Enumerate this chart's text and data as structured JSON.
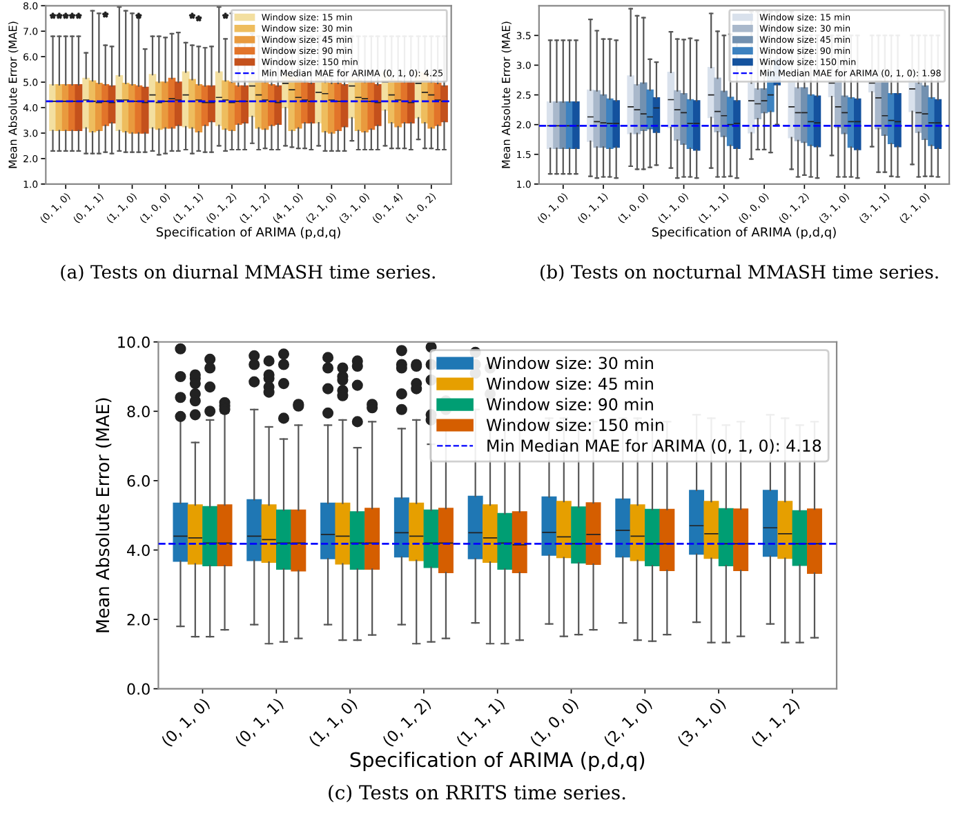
{
  "chart_data": [
    {
      "type": "box",
      "xlabel": "Specification of ARIMA (p,d,q)",
      "ylabel": "Mean Absolute Error (MAE)",
      "annotations": [
        "(a) Tests on diurnal MMASH time series."
      ],
      "marker": "star",
      "legend": "top right",
      "categories": [
        "(0, 1, 0)",
        "(0, 1, 1)",
        "(1, 1, 0)",
        "(1, 0, 0)",
        "(1, 1, 1)",
        "(0, 1, 2)",
        "(1, 1, 2)",
        "(4, 1, 0)",
        "(2, 1, 0)",
        "(3, 1, 0)",
        "(0, 1, 4)",
        "(1, 0, 2)"
      ],
      "ylim": [
        1.0,
        8.0
      ],
      "yticks": [
        {
          "value": 1,
          "label": "1.0"
        },
        {
          "value": 2,
          "label": "2.0"
        },
        {
          "value": 3,
          "label": "3.0"
        },
        {
          "value": 4,
          "label": "4.0"
        },
        {
          "value": 5,
          "label": "5.0"
        },
        {
          "value": 6,
          "label": "6.0"
        },
        {
          "value": 7,
          "label": "7.0"
        },
        {
          "value": 8,
          "label": "8.0"
        }
      ],
      "ref_lines": [
        {
          "axis": "y",
          "value": 4.25,
          "label": "Min Median MAE for ARIMA (0, 1, 0): 4.25",
          "color": "#0000ff",
          "line_style": "dashed"
        }
      ],
      "series": [
        {
          "name": "Window size: 15 min",
          "color": "#f3dfa0",
          "boxes": [
            {
              "low": 2.3,
              "q1": 3.1,
              "median": 4.25,
              "q3": 4.9,
              "high": 6.8,
              "outliers": [
                7.6
              ]
            },
            {
              "low": 2.2,
              "q1": 3.2,
              "median": 4.3,
              "q3": 5.15,
              "high": 6.15
            },
            {
              "low": 2.3,
              "q1": 3.1,
              "median": 4.3,
              "q3": 5.25,
              "high": 7.95
            },
            {
              "low": 2.3,
              "q1": 3.2,
              "median": 4.5,
              "q3": 5.3,
              "high": 6.8
            },
            {
              "low": 2.35,
              "q1": 3.25,
              "median": 4.5,
              "q3": 5.4,
              "high": 6.55
            },
            {
              "low": 2.5,
              "q1": 3.3,
              "median": 4.4,
              "q3": 5.4,
              "high": 7.95
            },
            {
              "low": 2.6,
              "q1": 3.65,
              "median": 4.85,
              "q3": 5.3,
              "high": 6.9
            },
            {
              "low": 2.5,
              "q1": 4.0,
              "median": 4.95,
              "q3": 5.3,
              "high": 6.8
            },
            {
              "low": 2.5,
              "q1": 3.4,
              "median": 4.6,
              "q3": 5.2,
              "high": 6.8
            },
            {
              "low": 2.7,
              "q1": 3.6,
              "median": 4.85,
              "q3": 5.2,
              "high": 6.8
            },
            {
              "low": 2.5,
              "q1": 3.9,
              "median": 5.0,
              "q3": 5.4,
              "high": 6.8
            },
            {
              "low": 2.75,
              "q1": 3.6,
              "median": 4.95,
              "q3": 5.4,
              "high": 6.8
            }
          ]
        },
        {
          "name": "Window size: 30 min",
          "color": "#eebd5e",
          "boxes": [
            {
              "low": 2.3,
              "q1": 3.1,
              "median": 4.25,
              "q3": 4.9,
              "high": 6.8,
              "outliers": [
                7.6
              ]
            },
            {
              "low": 2.2,
              "q1": 3.05,
              "median": 4.25,
              "q3": 5.05,
              "high": 7.8
            },
            {
              "low": 2.25,
              "q1": 3.05,
              "median": 4.3,
              "q3": 4.95,
              "high": 7.8
            },
            {
              "low": 2.15,
              "q1": 3.15,
              "median": 4.2,
              "q3": 5.0,
              "high": 6.8
            },
            {
              "low": 2.2,
              "q1": 3.2,
              "median": 4.25,
              "q3": 5.1,
              "high": 6.45,
              "outliers": [
                7.6
              ]
            },
            {
              "low": 2.3,
              "q1": 3.15,
              "median": 4.3,
              "q3": 5.05,
              "high": 6.7,
              "outliers": [
                7.6
              ]
            },
            {
              "low": 2.35,
              "q1": 3.2,
              "median": 4.5,
              "q3": 5.1,
              "high": 6.8
            },
            {
              "low": 2.45,
              "q1": 3.1,
              "median": 4.7,
              "q3": 5.2,
              "high": 6.8
            },
            {
              "low": 2.3,
              "q1": 3.05,
              "median": 4.55,
              "q3": 5.0,
              "high": 6.8
            },
            {
              "low": 2.35,
              "q1": 3.1,
              "median": 4.4,
              "q3": 5.1,
              "high": 6.8
            },
            {
              "low": 2.4,
              "q1": 3.4,
              "median": 4.5,
              "q3": 5.1,
              "high": 6.8
            },
            {
              "low": 2.4,
              "q1": 3.4,
              "median": 4.6,
              "q3": 5.35,
              "high": 6.8
            }
          ]
        },
        {
          "name": "Window size: 45 min",
          "color": "#e99a3e",
          "boxes": [
            {
              "low": 2.3,
              "q1": 3.1,
              "median": 4.25,
              "q3": 4.9,
              "high": 6.8,
              "outliers": [
                7.6
              ]
            },
            {
              "low": 2.2,
              "q1": 3.1,
              "median": 4.2,
              "q3": 4.95,
              "high": 7.7
            },
            {
              "low": 2.25,
              "q1": 3.0,
              "median": 4.25,
              "q3": 4.9,
              "high": 7.7
            },
            {
              "low": 2.2,
              "q1": 3.2,
              "median": 4.25,
              "q3": 5.0,
              "high": 6.75
            },
            {
              "low": 2.3,
              "q1": 3.05,
              "median": 4.3,
              "q3": 4.9,
              "high": 6.4,
              "outliers": [
                7.5
              ]
            },
            {
              "low": 2.35,
              "q1": 3.1,
              "median": 4.2,
              "q3": 5.0,
              "high": 7.7
            },
            {
              "low": 2.4,
              "q1": 3.15,
              "median": 4.3,
              "q3": 5.0,
              "high": 6.7
            },
            {
              "low": 2.4,
              "q1": 3.2,
              "median": 4.4,
              "q3": 5.1,
              "high": 6.8
            },
            {
              "low": 2.3,
              "q1": 3.0,
              "median": 4.3,
              "q3": 4.95,
              "high": 6.8
            },
            {
              "low": 2.35,
              "q1": 3.05,
              "median": 4.35,
              "q3": 5.0,
              "high": 6.8
            },
            {
              "low": 2.4,
              "q1": 3.25,
              "median": 4.3,
              "q3": 5.05,
              "high": 6.8
            },
            {
              "low": 2.4,
              "q1": 3.2,
              "median": 4.5,
              "q3": 5.0,
              "high": 6.8
            }
          ]
        },
        {
          "name": "Window size: 90 min",
          "color": "#e2742a",
          "boxes": [
            {
              "low": 2.3,
              "q1": 3.1,
              "median": 4.25,
              "q3": 4.9,
              "high": 6.8,
              "outliers": [
                7.6
              ]
            },
            {
              "low": 2.25,
              "q1": 3.3,
              "median": 4.25,
              "q3": 4.9,
              "high": 6.45,
              "outliers": [
                7.65
              ]
            },
            {
              "low": 2.25,
              "q1": 3.0,
              "median": 4.25,
              "q3": 4.85,
              "high": 7.55,
              "outliers": [
                7.6
              ]
            },
            {
              "low": 2.3,
              "q1": 3.2,
              "median": 4.35,
              "q3": 5.15,
              "high": 6.9
            },
            {
              "low": 2.25,
              "q1": 3.3,
              "median": 4.2,
              "q3": 4.85,
              "high": 6.35
            },
            {
              "low": 2.35,
              "q1": 3.35,
              "median": 4.25,
              "q3": 4.85,
              "high": 6.5
            },
            {
              "low": 2.35,
              "q1": 3.3,
              "median": 4.25,
              "q3": 4.9,
              "high": 6.6
            },
            {
              "low": 2.4,
              "q1": 3.4,
              "median": 4.3,
              "q3": 5.0,
              "high": 6.8
            },
            {
              "low": 2.3,
              "q1": 3.1,
              "median": 4.25,
              "q3": 4.95,
              "high": 6.8
            },
            {
              "low": 2.35,
              "q1": 3.15,
              "median": 4.25,
              "q3": 5.0,
              "high": 6.8
            },
            {
              "low": 2.4,
              "q1": 3.4,
              "median": 4.25,
              "q3": 5.0,
              "high": 6.8
            },
            {
              "low": 2.35,
              "q1": 3.3,
              "median": 4.3,
              "q3": 4.95,
              "high": 6.8
            }
          ]
        },
        {
          "name": "Window size: 150 min",
          "color": "#c4511c",
          "boxes": [
            {
              "low": 2.3,
              "q1": 3.1,
              "median": 4.25,
              "q3": 4.9,
              "high": 6.8,
              "outliers": [
                7.6
              ]
            },
            {
              "low": 2.2,
              "q1": 3.4,
              "median": 4.2,
              "q3": 4.85,
              "high": 6.4
            },
            {
              "low": 2.25,
              "q1": 3.0,
              "median": 4.2,
              "q3": 4.8,
              "high": 6.3
            },
            {
              "low": 2.3,
              "q1": 3.3,
              "median": 4.3,
              "q3": 5.0,
              "high": 6.95
            },
            {
              "low": 2.25,
              "q1": 3.45,
              "median": 4.2,
              "q3": 4.85,
              "high": 6.4
            },
            {
              "low": 2.35,
              "q1": 3.4,
              "median": 4.25,
              "q3": 4.85,
              "high": 6.55
            },
            {
              "low": 2.35,
              "q1": 3.35,
              "median": 4.2,
              "q3": 4.85,
              "high": 6.6
            },
            {
              "low": 2.35,
              "q1": 3.4,
              "median": 4.25,
              "q3": 4.95,
              "high": 6.8
            },
            {
              "low": 2.3,
              "q1": 3.25,
              "median": 4.25,
              "q3": 4.9,
              "high": 6.8
            },
            {
              "low": 2.35,
              "q1": 3.3,
              "median": 4.2,
              "q3": 4.9,
              "high": 6.8
            },
            {
              "low": 2.35,
              "q1": 3.4,
              "median": 4.2,
              "q3": 5.0,
              "high": 6.8
            },
            {
              "low": 2.35,
              "q1": 3.45,
              "median": 4.25,
              "q3": 4.85,
              "high": 6.8
            }
          ]
        }
      ]
    },
    {
      "type": "box",
      "xlabel": "Specification of ARIMA (p,d,q)",
      "ylabel": "Mean Absolute Error (MAE)",
      "annotations": [
        "(b) Tests on nocturnal MMASH time series."
      ],
      "legend": "top right",
      "categories": [
        "(0, 1, 0)",
        "(0, 1, 1)",
        "(1, 0, 0)",
        "(1, 1, 0)",
        "(1, 1, 1)",
        "(0, 0, 0)",
        "(0, 1, 2)",
        "(3, 1, 0)",
        "(3, 1, 1)",
        "(2, 1, 0)"
      ],
      "ylim": [
        1.0,
        4.0
      ],
      "yticks": [
        {
          "value": 1,
          "label": "1.0"
        },
        1.5,
        {
          "value": 2,
          "label": "2.0"
        },
        2.5,
        {
          "value": 3,
          "label": "3.0"
        },
        3.5
      ],
      "ref_lines": [
        {
          "axis": "y",
          "value": 1.98,
          "label": "Min Median MAE for ARIMA (0, 1, 0): 1.98",
          "color": "#0000ff",
          "line_style": "dashed"
        }
      ],
      "series": [
        {
          "name": "Window size: 15 min",
          "color": "#d9e1ec",
          "boxes": [
            {
              "low": 1.17,
              "q1": 1.6,
              "median": 1.98,
              "q3": 2.38,
              "high": 3.42
            },
            {
              "low": 1.13,
              "q1": 1.72,
              "median": 2.13,
              "q3": 2.58,
              "high": 3.77
            },
            {
              "low": 1.3,
              "q1": 1.85,
              "median": 2.3,
              "q3": 2.82,
              "high": 3.95
            },
            {
              "low": 1.27,
              "q1": 1.95,
              "median": 2.42,
              "q3": 2.88,
              "high": 3.56
            },
            {
              "low": 1.27,
              "q1": 2.12,
              "median": 2.5,
              "q3": 2.96,
              "high": 3.87
            },
            {
              "low": 1.42,
              "q1": 1.86,
              "median": 2.4,
              "q3": 2.7,
              "high": 3.9
            },
            {
              "low": 1.25,
              "q1": 1.78,
              "median": 2.3,
              "q3": 2.9,
              "high": 3.9
            },
            {
              "low": 1.48,
              "q1": 2.47,
              "median": 2.7,
              "q3": 2.9,
              "high": 3.5
            },
            {
              "low": 1.63,
              "q1": 2.55,
              "median": 2.7,
              "q3": 2.9,
              "high": 3.5
            },
            {
              "low": 1.33,
              "q1": 2.22,
              "median": 2.6,
              "q3": 2.9,
              "high": 3.5
            }
          ]
        },
        {
          "name": "Window size: 30 min",
          "color": "#a9b8cb",
          "boxes": [
            {
              "low": 1.17,
              "q1": 1.6,
              "median": 1.98,
              "q3": 2.38,
              "high": 3.42
            },
            {
              "low": 1.1,
              "q1": 1.62,
              "median": 2.05,
              "q3": 2.57,
              "high": 3.58
            },
            {
              "low": 1.25,
              "q1": 1.85,
              "median": 2.25,
              "q3": 2.67,
              "high": 3.83
            },
            {
              "low": 1.1,
              "q1": 1.74,
              "median": 2.25,
              "q3": 2.57,
              "high": 3.44
            },
            {
              "low": 1.12,
              "q1": 1.88,
              "median": 2.22,
              "q3": 2.78,
              "high": 3.57
            },
            {
              "low": 1.58,
              "q1": 2.1,
              "median": 2.35,
              "q3": 2.6,
              "high": 3.9
            },
            {
              "low": 1.12,
              "q1": 1.73,
              "median": 2.2,
              "q3": 2.62,
              "high": 3.5
            },
            {
              "low": 1.12,
              "q1": 1.95,
              "median": 2.3,
              "q3": 2.85,
              "high": 3.5
            },
            {
              "low": 1.2,
              "q1": 1.93,
              "median": 2.45,
              "q3": 2.9,
              "high": 3.5
            },
            {
              "low": 1.12,
              "q1": 1.87,
              "median": 2.2,
              "q3": 2.7,
              "high": 3.5
            }
          ]
        },
        {
          "name": "Window size: 45 min",
          "color": "#7391b0",
          "boxes": [
            {
              "low": 1.17,
              "q1": 1.6,
              "median": 1.98,
              "q3": 2.38,
              "high": 3.42
            },
            {
              "low": 1.12,
              "q1": 1.62,
              "median": 2.03,
              "q3": 2.5,
              "high": 3.44
            },
            {
              "low": 1.25,
              "q1": 1.9,
              "median": 2.18,
              "q3": 2.7,
              "high": 3.8
            },
            {
              "low": 1.12,
              "q1": 1.67,
              "median": 2.2,
              "q3": 2.52,
              "high": 3.43
            },
            {
              "low": 1.12,
              "q1": 1.8,
              "median": 2.15,
              "q3": 2.56,
              "high": 3.5
            },
            {
              "low": 1.58,
              "q1": 2.2,
              "median": 2.4,
              "q3": 2.6,
              "high": 3.9
            },
            {
              "low": 1.15,
              "q1": 1.7,
              "median": 2.2,
              "q3": 2.62,
              "high": 3.5
            },
            {
              "low": 1.12,
              "q1": 1.85,
              "median": 2.2,
              "q3": 2.48,
              "high": 3.5
            },
            {
              "low": 1.2,
              "q1": 1.82,
              "median": 2.15,
              "q3": 2.73,
              "high": 3.5
            },
            {
              "low": 1.13,
              "q1": 1.75,
              "median": 2.18,
              "q3": 2.65,
              "high": 3.5
            }
          ]
        },
        {
          "name": "Window size: 90 min",
          "color": "#3d82c0",
          "boxes": [
            {
              "low": 1.17,
              "q1": 1.6,
              "median": 1.98,
              "q3": 2.38,
              "high": 3.42
            },
            {
              "low": 1.12,
              "q1": 1.6,
              "median": 2.02,
              "q3": 2.43,
              "high": 3.44
            },
            {
              "low": 1.28,
              "q1": 1.93,
              "median": 2.13,
              "q3": 2.58,
              "high": 3.1
            },
            {
              "low": 1.12,
              "q1": 1.6,
              "median": 2.02,
              "q3": 2.42,
              "high": 3.45
            },
            {
              "low": 1.13,
              "q1": 1.65,
              "median": 2.0,
              "q3": 2.46,
              "high": 3.52
            },
            {
              "low": 1.53,
              "q1": 2.22,
              "median": 2.5,
              "q3": 2.9,
              "high": 3.9
            },
            {
              "low": 1.12,
              "q1": 1.65,
              "median": 2.05,
              "q3": 2.5,
              "high": 3.5
            },
            {
              "low": 1.12,
              "q1": 1.62,
              "median": 2.05,
              "q3": 2.45,
              "high": 3.5
            },
            {
              "low": 1.13,
              "q1": 1.68,
              "median": 2.07,
              "q3": 2.52,
              "high": 3.5
            },
            {
              "low": 1.13,
              "q1": 1.65,
              "median": 2.03,
              "q3": 2.45,
              "high": 3.5
            }
          ]
        },
        {
          "name": "Window size: 150 min",
          "color": "#14529e",
          "boxes": [
            {
              "low": 1.17,
              "q1": 1.6,
              "median": 1.98,
              "q3": 2.38,
              "high": 3.42
            },
            {
              "low": 1.1,
              "q1": 1.62,
              "median": 2.02,
              "q3": 2.4,
              "high": 3.42
            },
            {
              "low": 1.32,
              "q1": 1.87,
              "median": 2.28,
              "q3": 2.45,
              "high": 3.05
            },
            {
              "low": 1.1,
              "q1": 1.57,
              "median": 2.02,
              "q3": 2.4,
              "high": 3.42
            },
            {
              "low": 1.1,
              "q1": 1.6,
              "median": 2.02,
              "q3": 2.4,
              "high": 3.44
            },
            {
              "low": 2.0,
              "q1": 2.67,
              "median": 2.85,
              "q3": 3.1,
              "high": 3.9
            },
            {
              "low": 1.1,
              "q1": 1.63,
              "median": 2.03,
              "q3": 2.48,
              "high": 3.5
            },
            {
              "low": 1.1,
              "q1": 1.58,
              "median": 2.05,
              "q3": 2.43,
              "high": 3.5
            },
            {
              "low": 1.12,
              "q1": 1.63,
              "median": 2.05,
              "q3": 2.52,
              "high": 3.5
            },
            {
              "low": 1.12,
              "q1": 1.6,
              "median": 2.03,
              "q3": 2.42,
              "high": 3.5
            }
          ]
        }
      ]
    },
    {
      "type": "box",
      "xlabel": "Specification of ARIMA (p,d,q)",
      "ylabel": "Mean Absolute Error (MAE)",
      "annotations": [
        "(c) Tests on RRITS time series."
      ],
      "marker": "circle",
      "legend": "top right",
      "categories": [
        "(0, 1, 0)",
        "(0, 1, 1)",
        "(1, 1, 0)",
        "(0, 1, 2)",
        "(1, 1, 1)",
        "(1, 0, 0)",
        "(2, 1, 0)",
        "(3, 1, 0)",
        "(1, 1, 2)"
      ],
      "ylim": [
        0.0,
        10.0
      ],
      "yticks": [
        {
          "value": 0,
          "label": "0.0"
        },
        {
          "value": 2,
          "label": "2.0"
        },
        {
          "value": 4,
          "label": "4.0"
        },
        {
          "value": 6,
          "label": "6.0"
        },
        {
          "value": 8,
          "label": "8.0"
        },
        {
          "value": 10,
          "label": "10.0"
        }
      ],
      "ref_lines": [
        {
          "axis": "y",
          "value": 4.18,
          "label": "Min Median MAE for ARIMA (0, 1, 0): 4.18",
          "color": "#0000ff",
          "line_style": "dashed"
        }
      ],
      "series": [
        {
          "name": "Window size: 30 min",
          "color": "#1f77b4",
          "boxes": [
            {
              "low": 1.8,
              "q1": 3.68,
              "median": 4.4,
              "q3": 5.35,
              "high": 7.8,
              "outliers": [
                9.8,
                9.0,
                8.4,
                7.85
              ]
            },
            {
              "low": 1.85,
              "q1": 3.7,
              "median": 4.4,
              "q3": 5.45,
              "high": 8.05,
              "outliers": [
                9.6,
                9.35,
                8.85
              ]
            },
            {
              "low": 1.85,
              "q1": 3.75,
              "median": 4.45,
              "q3": 5.35,
              "high": 7.6,
              "outliers": [
                9.55,
                9.25,
                8.65,
                7.95
              ]
            },
            {
              "low": 1.85,
              "q1": 3.8,
              "median": 4.5,
              "q3": 5.5,
              "high": 7.5,
              "outliers": [
                9.75,
                9.35,
                9.25,
                8.5,
                8.05
              ]
            },
            {
              "low": 1.9,
              "q1": 3.75,
              "median": 4.5,
              "q3": 5.55,
              "high": 8.05,
              "outliers": [
                9.7,
                9.35,
                9.1
              ]
            },
            {
              "low": 1.87,
              "q1": 3.85,
              "median": 4.51,
              "q3": 5.53,
              "high": 7.8
            },
            {
              "low": 1.9,
              "q1": 3.8,
              "median": 4.57,
              "q3": 5.47,
              "high": 7.8
            },
            {
              "low": 1.92,
              "q1": 3.88,
              "median": 4.7,
              "q3": 5.72,
              "high": 7.9
            },
            {
              "low": 1.87,
              "q1": 3.82,
              "median": 4.64,
              "q3": 5.72,
              "high": 7.9
            }
          ]
        },
        {
          "name": "Window size: 45 min",
          "color": "#e69f00",
          "boxes": [
            {
              "low": 1.5,
              "q1": 3.6,
              "median": 4.35,
              "q3": 5.3,
              "high": 7.1,
              "outliers": [
                9.05,
                8.95,
                8.8,
                8.5,
                8.3,
                7.9
              ]
            },
            {
              "low": 1.3,
              "q1": 3.65,
              "median": 4.3,
              "q3": 5.3,
              "high": 7.55,
              "outliers": [
                9.45,
                9.05,
                8.95,
                8.7,
                8.55
              ]
            },
            {
              "low": 1.4,
              "q1": 3.6,
              "median": 4.4,
              "q3": 5.35,
              "high": 7.75,
              "outliers": [
                9.25,
                9.0,
                8.9,
                8.6,
                8.45
              ]
            },
            {
              "low": 1.3,
              "q1": 3.7,
              "median": 4.4,
              "q3": 5.35,
              "high": 7.75,
              "outliers": [
                9.35,
                9.3,
                8.8,
                8.65
              ]
            },
            {
              "low": 1.3,
              "q1": 3.65,
              "median": 4.35,
              "q3": 5.3,
              "high": 7.7,
              "outliers": [
                9.25,
                8.5
              ]
            },
            {
              "low": 1.51,
              "q1": 3.78,
              "median": 4.38,
              "q3": 5.4,
              "high": 7.8
            },
            {
              "low": 1.4,
              "q1": 3.7,
              "median": 4.4,
              "q3": 5.3,
              "high": 7.8
            },
            {
              "low": 1.33,
              "q1": 3.76,
              "median": 4.47,
              "q3": 5.4,
              "high": 7.8
            },
            {
              "low": 1.33,
              "q1": 3.76,
              "median": 4.47,
              "q3": 5.4,
              "high": 7.8
            }
          ]
        },
        {
          "name": "Window size: 90 min",
          "color": "#009e73",
          "boxes": [
            {
              "low": 1.5,
              "q1": 3.55,
              "median": 4.2,
              "q3": 5.25,
              "high": 7.75,
              "outliers": [
                9.5,
                9.25,
                8.7,
                8.0
              ]
            },
            {
              "low": 1.35,
              "q1": 3.45,
              "median": 4.2,
              "q3": 5.15,
              "high": 7.2,
              "outliers": [
                9.65,
                9.35,
                8.8,
                7.8
              ]
            },
            {
              "low": 1.4,
              "q1": 3.45,
              "median": 4.2,
              "q3": 5.1,
              "high": 6.95,
              "outliers": [
                9.45,
                9.3,
                8.75,
                7.7
              ]
            },
            {
              "low": 1.35,
              "q1": 3.5,
              "median": 4.2,
              "q3": 5.15,
              "high": 7.05,
              "outliers": [
                9.85,
                9.35,
                8.9,
                7.9,
                7.75
              ]
            },
            {
              "low": 1.3,
              "q1": 3.45,
              "median": 4.2,
              "q3": 5.05,
              "high": 7.6
            },
            {
              "low": 1.56,
              "q1": 3.63,
              "median": 4.18,
              "q3": 5.24,
              "high": 7.6
            },
            {
              "low": 1.37,
              "q1": 3.55,
              "median": 4.18,
              "q3": 5.17,
              "high": 7.6
            },
            {
              "low": 1.33,
              "q1": 3.55,
              "median": 4.18,
              "q3": 5.19,
              "high": 7.6
            },
            {
              "low": 1.33,
              "q1": 3.56,
              "median": 4.18,
              "q3": 5.13,
              "high": 7.6
            }
          ]
        },
        {
          "name": "Window size: 150 min",
          "color": "#d55e00",
          "boxes": [
            {
              "low": 1.7,
              "q1": 3.55,
              "median": 4.2,
              "q3": 5.3,
              "high": 7.95,
              "outliers": [
                8.25,
                8.15,
                8.05
              ]
            },
            {
              "low": 1.45,
              "q1": 3.4,
              "median": 4.2,
              "q3": 5.15,
              "high": 7.6,
              "outliers": [
                8.2,
                8.15
              ]
            },
            {
              "low": 1.55,
              "q1": 3.45,
              "median": 4.2,
              "q3": 5.2,
              "high": 7.7,
              "outliers": [
                8.2,
                8.1
              ]
            },
            {
              "low": 1.45,
              "q1": 3.35,
              "median": 4.2,
              "q3": 5.2,
              "high": 7.75,
              "outliers": [
                8.3,
                8.05
              ]
            },
            {
              "low": 1.4,
              "q1": 3.35,
              "median": 4.15,
              "q3": 5.1,
              "high": 7.7
            },
            {
              "low": 1.7,
              "q1": 3.59,
              "median": 4.45,
              "q3": 5.36,
              "high": 7.7
            },
            {
              "low": 1.56,
              "q1": 3.41,
              "median": 4.18,
              "q3": 5.17,
              "high": 7.7
            },
            {
              "low": 1.51,
              "q1": 3.41,
              "median": 4.18,
              "q3": 5.18,
              "high": 7.7
            },
            {
              "low": 1.47,
              "q1": 3.33,
              "median": 4.18,
              "q3": 5.18,
              "high": 7.7
            }
          ]
        }
      ]
    }
  ]
}
